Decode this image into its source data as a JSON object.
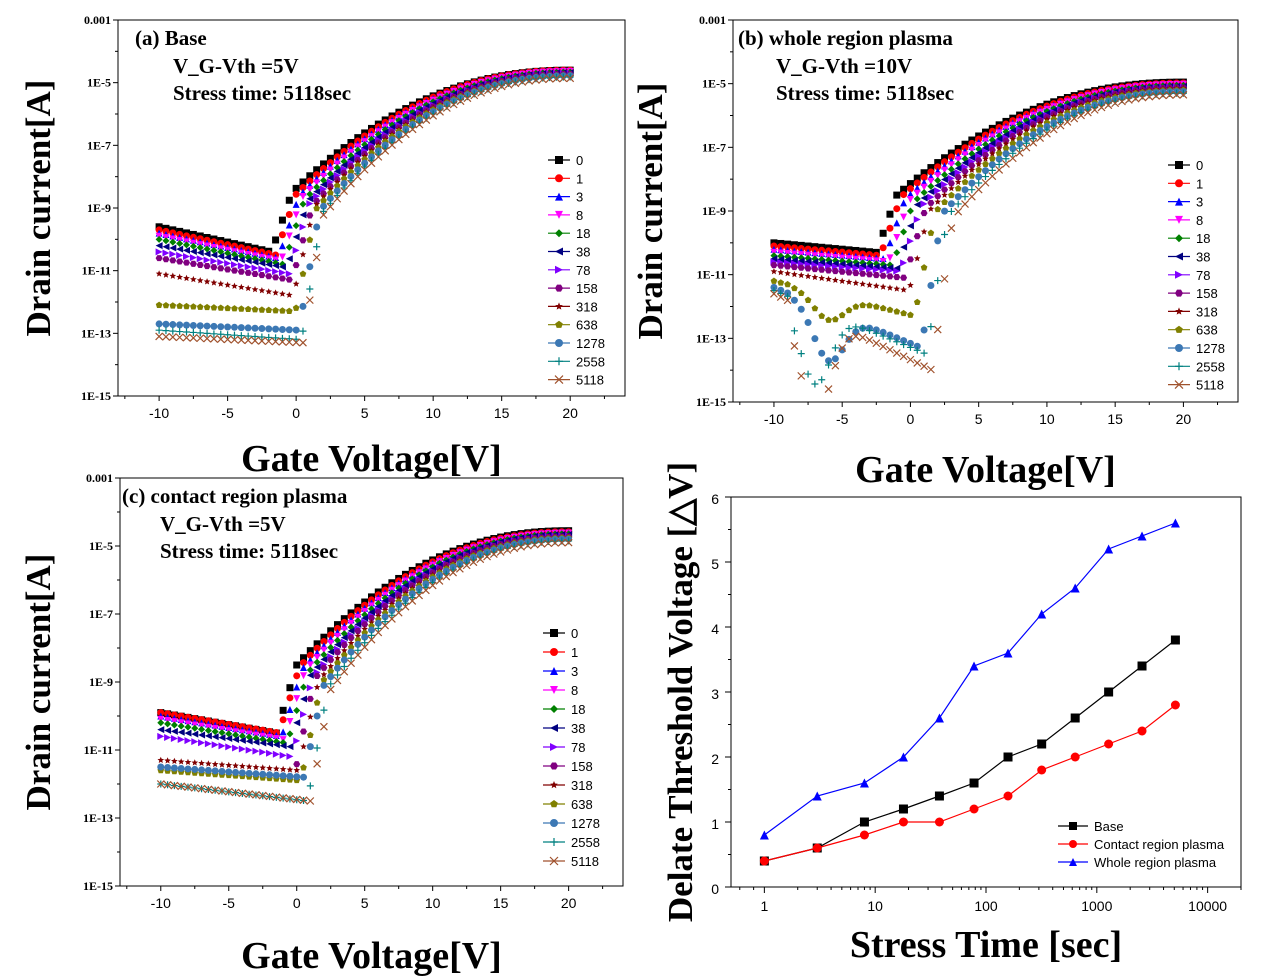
{
  "chart_data": [
    {
      "type": "scatter",
      "panel": "a",
      "annotations": [
        "(a) Base",
        "V_G-Vth =5V",
        "Stress time: 5118sec"
      ],
      "xlabel": "Gate Voltage[V]",
      "ylabel": "Drain current[A]",
      "xlim": [
        -13,
        24
      ],
      "ylim_log10": [
        -15,
        -3
      ],
      "x_ticks": [
        "-10",
        "-5",
        "0",
        "5",
        "10",
        "15",
        "20"
      ],
      "y_ticks": [
        "1E-15",
        "1E-13",
        "1E-11",
        "1E-9",
        "1E-7",
        "1E-5",
        "0.001"
      ],
      "legend_position": "right",
      "series": [
        {
          "name": "0",
          "color": "#000000",
          "marker": "square",
          "Von": -1.8,
          "off_start": -9.6,
          "off_end": -10.4,
          "on_log10": -4.6
        },
        {
          "name": "1",
          "color": "#ff0000",
          "marker": "circle",
          "Von": -1.5,
          "off_start": -9.7,
          "off_end": -10.5,
          "on_log10": -4.6
        },
        {
          "name": "3",
          "color": "#0000ff",
          "marker": "triangle-up",
          "Von": -1.3,
          "off_start": -9.8,
          "off_end": -10.6,
          "on_log10": -4.62
        },
        {
          "name": "8",
          "color": "#ff00ff",
          "marker": "triangle-down",
          "Von": -1.1,
          "off_start": -9.9,
          "off_end": -10.7,
          "on_log10": -4.64
        },
        {
          "name": "18",
          "color": "#008000",
          "marker": "diamond",
          "Von": -0.9,
          "off_start": -10.0,
          "off_end": -10.8,
          "on_log10": -4.66
        },
        {
          "name": "38",
          "color": "#000080",
          "marker": "triangle-left",
          "Von": -0.7,
          "off_start": -10.2,
          "off_end": -10.9,
          "on_log10": -4.68
        },
        {
          "name": "78",
          "color": "#8000ff",
          "marker": "triangle-right",
          "Von": -0.5,
          "off_start": -10.4,
          "off_end": -11.1,
          "on_log10": -4.7
        },
        {
          "name": "158",
          "color": "#800080",
          "marker": "hexagon",
          "Von": -0.3,
          "off_start": -10.6,
          "off_end": -11.3,
          "on_log10": -4.72
        },
        {
          "name": "318",
          "color": "#800000",
          "marker": "star",
          "Von": -0.2,
          "off_start": -11.1,
          "off_end": -11.8,
          "on_log10": -4.74
        },
        {
          "name": "638",
          "color": "#808000",
          "marker": "pentagon",
          "Von": -0.05,
          "off_start": -12.1,
          "off_end": -12.3,
          "on_log10": -4.76
        },
        {
          "name": "1278",
          "color": "#3c78b4",
          "marker": "circle",
          "Von": 0.2,
          "off_start": -12.7,
          "off_end": -12.9,
          "on_log10": -4.78
        },
        {
          "name": "2558",
          "color": "#008080",
          "marker": "plus",
          "Von": 0.4,
          "off_start": -12.9,
          "off_end": -13.2,
          "on_log10": -4.82
        },
        {
          "name": "5118",
          "color": "#a0522d",
          "marker": "x",
          "Von": 0.5,
          "off_start": -13.1,
          "off_end": -13.3,
          "on_log10": -4.86
        }
      ]
    },
    {
      "type": "scatter",
      "panel": "b",
      "annotations": [
        "(b) whole region plasma",
        "V_G-Vth =10V",
        "Stress time: 5118sec"
      ],
      "xlabel": "Gate Voltage[V]",
      "ylabel": "Drain current[A]",
      "xlim": [
        -13,
        24
      ],
      "ylim_log10": [
        -15,
        -3
      ],
      "x_ticks": [
        "-10",
        "-5",
        "0",
        "5",
        "10",
        "15",
        "20"
      ],
      "y_ticks": [
        "1E-15",
        "1E-13",
        "1E-11",
        "1E-9",
        "1E-7",
        "1E-5",
        "0.001"
      ],
      "legend_position": "right",
      "series": [
        {
          "name": "0",
          "color": "#000000",
          "marker": "square",
          "Von": -2.5,
          "off_start": -10.0,
          "off_end": -10.3,
          "on_log10": -4.95
        },
        {
          "name": "1",
          "color": "#ff0000",
          "marker": "circle",
          "Von": -2.2,
          "off_start": -10.1,
          "off_end": -10.4,
          "on_log10": -4.98
        },
        {
          "name": "3",
          "color": "#0000ff",
          "marker": "triangle-up",
          "Von": -1.9,
          "off_start": -10.2,
          "off_end": -10.5,
          "on_log10": -5.0
        },
        {
          "name": "8",
          "color": "#ff00ff",
          "marker": "triangle-down",
          "Von": -1.6,
          "off_start": -10.3,
          "off_end": -10.6,
          "on_log10": -5.02
        },
        {
          "name": "18",
          "color": "#008000",
          "marker": "diamond",
          "Von": -1.3,
          "off_start": -10.4,
          "off_end": -10.7,
          "on_log10": -5.05
        },
        {
          "name": "38",
          "color": "#000080",
          "marker": "triangle-left",
          "Von": -1.0,
          "off_start": -10.5,
          "off_end": -10.8,
          "on_log10": -5.08
        },
        {
          "name": "78",
          "color": "#8000ff",
          "marker": "triangle-right",
          "Von": -0.7,
          "off_start": -10.6,
          "off_end": -10.9,
          "on_log10": -5.1
        },
        {
          "name": "158",
          "color": "#800080",
          "marker": "hexagon",
          "Von": -0.4,
          "off_start": -10.7,
          "off_end": -11.1,
          "on_log10": -5.12
        },
        {
          "name": "318",
          "color": "#800000",
          "marker": "star",
          "Von": -0.1,
          "off_start": -10.9,
          "off_end": -11.5,
          "on_log10": -5.15
        },
        {
          "name": "638",
          "color": "#808000",
          "marker": "pentagon",
          "Von": 0.3,
          "off_start": -11.2,
          "off_end": -12.3,
          "on_log10": -5.2
        },
        {
          "name": "1278",
          "color": "#3c78b4",
          "marker": "circle",
          "Von": 0.8,
          "off_start": -11.4,
          "off_end": -13.3,
          "on_log10": -5.25
        },
        {
          "name": "2558",
          "color": "#008080",
          "marker": "plus",
          "Von": 1.2,
          "off_start": -11.5,
          "off_end": -13.5,
          "on_log10": -5.3
        },
        {
          "name": "5118",
          "color": "#a0522d",
          "marker": "x",
          "Von": 1.6,
          "off_start": -11.6,
          "off_end": -14.0,
          "on_log10": -5.35
        }
      ]
    },
    {
      "type": "scatter",
      "panel": "c",
      "annotations": [
        "(c) contact region plasma",
        "V_G-Vth =5V",
        "Stress time: 5118sec"
      ],
      "xlabel": "Gate Voltage[V]",
      "ylabel": "Drain current[A]",
      "xlim": [
        -13,
        24
      ],
      "ylim_log10": [
        -15,
        -3
      ],
      "x_ticks": [
        "-10",
        "-5",
        "0",
        "5",
        "10",
        "15",
        "20"
      ],
      "y_ticks": [
        "1E-15",
        "1E-13",
        "1E-11",
        "1E-9",
        "1E-7",
        "1E-5",
        "0.001"
      ],
      "legend_position": "right",
      "series": [
        {
          "name": "0",
          "color": "#000000",
          "marker": "square",
          "Von": -1.5,
          "off_start": -9.9,
          "off_end": -10.5,
          "on_log10": -4.55
        },
        {
          "name": "1",
          "color": "#ff0000",
          "marker": "circle",
          "Von": -1.3,
          "off_start": -9.9,
          "off_end": -10.5,
          "on_log10": -4.58
        },
        {
          "name": "3",
          "color": "#0000ff",
          "marker": "triangle-up",
          "Von": -1.1,
          "off_start": -10.0,
          "off_end": -10.6,
          "on_log10": -4.6
        },
        {
          "name": "8",
          "color": "#ff00ff",
          "marker": "triangle-down",
          "Von": -0.9,
          "off_start": -10.1,
          "off_end": -10.7,
          "on_log10": -4.62
        },
        {
          "name": "18",
          "color": "#008000",
          "marker": "diamond",
          "Von": -0.7,
          "off_start": -10.2,
          "off_end": -10.8,
          "on_log10": -4.64
        },
        {
          "name": "38",
          "color": "#000080",
          "marker": "triangle-left",
          "Von": -0.5,
          "off_start": -10.4,
          "off_end": -10.9,
          "on_log10": -4.66
        },
        {
          "name": "78",
          "color": "#8000ff",
          "marker": "triangle-right",
          "Von": -0.3,
          "off_start": -10.6,
          "off_end": -11.2,
          "on_log10": -4.7
        },
        {
          "name": "158",
          "color": "#800080",
          "marker": "hexagon",
          "Von": -0.2,
          "off_start": -11.5,
          "off_end": -11.8,
          "on_log10": -4.72
        },
        {
          "name": "318",
          "color": "#800000",
          "marker": "star",
          "Von": 0.1,
          "off_start": -11.3,
          "off_end": -11.6,
          "on_log10": -4.74
        },
        {
          "name": "638",
          "color": "#808000",
          "marker": "pentagon",
          "Von": 0.3,
          "off_start": -11.6,
          "off_end": -11.9,
          "on_log10": -4.76
        },
        {
          "name": "1278",
          "color": "#3c78b4",
          "marker": "circle",
          "Von": 0.5,
          "off_start": -11.5,
          "off_end": -11.8,
          "on_log10": -4.8
        },
        {
          "name": "2558",
          "color": "#008080",
          "marker": "plus",
          "Von": 0.8,
          "off_start": -12.0,
          "off_end": -12.5,
          "on_log10": -4.85
        },
        {
          "name": "5118",
          "color": "#a0522d",
          "marker": "x",
          "Von": 1.0,
          "off_start": -12.0,
          "off_end": -12.5,
          "on_log10": -4.9
        }
      ]
    },
    {
      "type": "line",
      "panel": "d",
      "xlabel": "Stress Time [sec]",
      "ylabel": "Delate Threshold Voltage [△V]",
      "xscale": "log",
      "xlim": [
        0.5,
        20000
      ],
      "ylim": [
        0,
        6
      ],
      "x_ticks": [
        "1",
        "10",
        "100",
        "1000",
        "10000"
      ],
      "y_ticks": [
        "0",
        "1",
        "2",
        "3",
        "4",
        "5",
        "6"
      ],
      "legend_position": "bottom-right",
      "x": [
        1,
        3,
        8,
        18,
        38,
        78,
        158,
        318,
        638,
        1278,
        2558,
        5118
      ],
      "series": [
        {
          "name": "Base",
          "color": "#000000",
          "marker": "square",
          "values": [
            0.4,
            0.6,
            1.0,
            1.2,
            1.4,
            1.6,
            2.0,
            2.2,
            2.6,
            3.0,
            3.4,
            3.8
          ]
        },
        {
          "name": "Contact region plasma",
          "color": "#ff0000",
          "marker": "circle",
          "values": [
            0.4,
            0.6,
            0.8,
            1.0,
            1.0,
            1.2,
            1.4,
            1.8,
            2.0,
            2.2,
            2.4,
            2.8
          ]
        },
        {
          "name": "Whole region plasma",
          "color": "#0000ff",
          "marker": "triangle-up",
          "values": [
            0.8,
            1.4,
            1.6,
            2.0,
            2.6,
            3.4,
            3.6,
            4.2,
            4.6,
            5.2,
            5.4,
            5.6
          ]
        }
      ]
    }
  ]
}
